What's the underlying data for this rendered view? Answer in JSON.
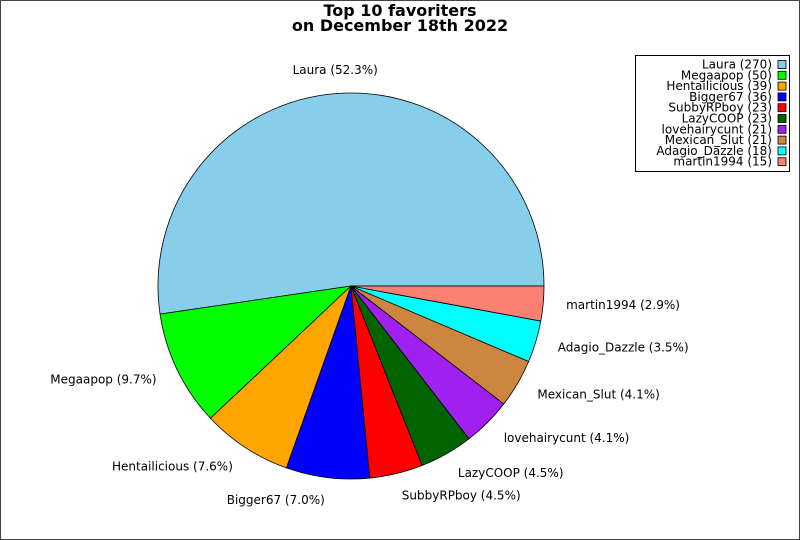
{
  "chart_data": {
    "type": "pie",
    "title_line1": "Top 10 favoriters",
    "title_line2": "on December 18th 2022",
    "legend_position": "top-right",
    "start_angle_deg": 0,
    "direction": "counterclockwise",
    "slices": [
      {
        "name": "Laura",
        "value": 270,
        "percent_label": "Laura (52.3%)",
        "legend_label": "Laura (270)",
        "color": "#87ceeb"
      },
      {
        "name": "Megaapop",
        "value": 50,
        "percent_label": "Megaapop (9.7%)",
        "legend_label": "Megaapop (50)",
        "color": "#00ff00"
      },
      {
        "name": "Hentailicious",
        "value": 39,
        "percent_label": "Hentailicious (7.6%)",
        "legend_label": "Hentailicious (39)",
        "color": "#ffa500"
      },
      {
        "name": "Bigger67",
        "value": 36,
        "percent_label": "Bigger67 (7.0%)",
        "legend_label": "Bigger67 (36)",
        "color": "#0000ff"
      },
      {
        "name": "SubbyRPboy",
        "value": 23,
        "percent_label": "SubbyRPboy (4.5%)",
        "legend_label": "SubbyRPboy (23)",
        "color": "#ff0000"
      },
      {
        "name": "LazyCOOP",
        "value": 23,
        "percent_label": "LazyCOOP (4.5%)",
        "legend_label": "LazyCOOP (23)",
        "color": "#006400"
      },
      {
        "name": "lovehairycunt",
        "value": 21,
        "percent_label": "lovehairycunt (4.1%)",
        "legend_label": "lovehairycunt (21)",
        "color": "#a020f0"
      },
      {
        "name": "Mexican_Slut",
        "value": 21,
        "percent_label": "Mexican_Slut (4.1%)",
        "legend_label": "Mexican_Slut (21)",
        "color": "#cd853f"
      },
      {
        "name": "Adagio_Dazzle",
        "value": 18,
        "percent_label": "Adagio_Dazzle (3.5%)",
        "legend_label": "Adagio_Dazzle (18)",
        "color": "#00ffff"
      },
      {
        "name": "martin1994",
        "value": 15,
        "percent_label": "martin1994 (2.9%)",
        "legend_label": "martin1994 (15)",
        "color": "#fa8072"
      }
    ]
  }
}
